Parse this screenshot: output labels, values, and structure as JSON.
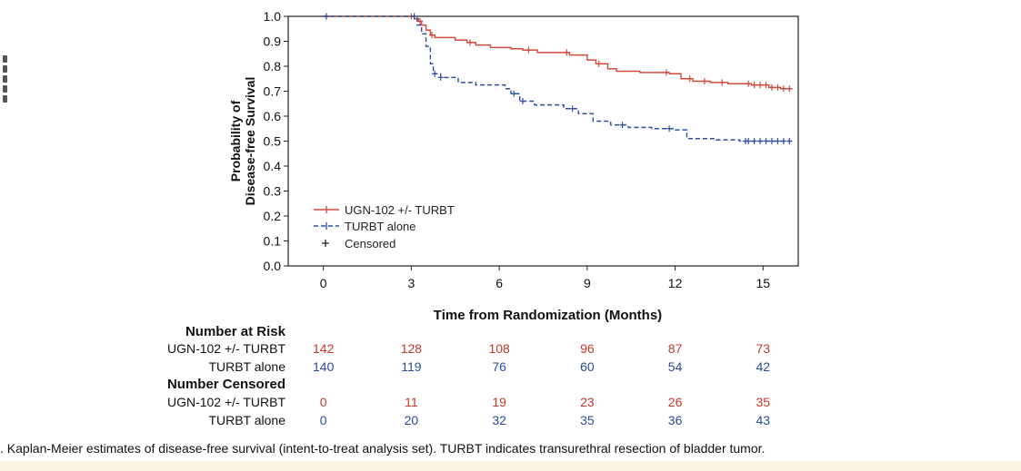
{
  "chart_data": {
    "type": "line",
    "title": "",
    "xlabel": "Time from Randomization (Months)",
    "ylabel_lines": [
      "Probability of",
      "Disease-free Survival"
    ],
    "xlim": [
      -1.2,
      16.2
    ],
    "ylim": [
      0,
      1.0
    ],
    "x_ticks": [
      0,
      3,
      6,
      9,
      12,
      15
    ],
    "y_ticks": [
      "0.0",
      "0.1",
      "0.2",
      "0.3",
      "0.4",
      "0.5",
      "0.6",
      "0.7",
      "0.8",
      "0.9",
      "1.0"
    ],
    "grid": false,
    "legend_position": "bottom-left",
    "legend": [
      "UGN-102 +/- TURBT",
      "TURBT alone",
      "Censored"
    ],
    "series": [
      {
        "name": "UGN-102 +/- TURBT",
        "color": "#d04a3c",
        "dash": "solid",
        "steps": [
          [
            0,
            1.0
          ],
          [
            3.0,
            1.0
          ],
          [
            3.1,
            0.99
          ],
          [
            3.25,
            0.98
          ],
          [
            3.35,
            0.965
          ],
          [
            3.5,
            0.945
          ],
          [
            3.65,
            0.925
          ],
          [
            3.8,
            0.915
          ],
          [
            4.5,
            0.905
          ],
          [
            4.9,
            0.895
          ],
          [
            5.2,
            0.885
          ],
          [
            5.7,
            0.875
          ],
          [
            6.4,
            0.87
          ],
          [
            6.8,
            0.865
          ],
          [
            7.3,
            0.855
          ],
          [
            8.4,
            0.845
          ],
          [
            9.0,
            0.825
          ],
          [
            9.3,
            0.81
          ],
          [
            9.7,
            0.79
          ],
          [
            10.0,
            0.78
          ],
          [
            10.8,
            0.775
          ],
          [
            11.8,
            0.77
          ],
          [
            12.2,
            0.75
          ],
          [
            12.6,
            0.74
          ],
          [
            13.2,
            0.735
          ],
          [
            13.8,
            0.73
          ],
          [
            14.6,
            0.725
          ],
          [
            15.2,
            0.715
          ],
          [
            15.6,
            0.71
          ],
          [
            16.0,
            0.71
          ]
        ],
        "censored": [
          0.1,
          3.0,
          3.3,
          3.7,
          5.0,
          7.0,
          8.3,
          9.4,
          11.7,
          12.5,
          13.0,
          13.6,
          14.5,
          14.7,
          14.9,
          15.1,
          15.3,
          15.5,
          15.7,
          15.9
        ]
      },
      {
        "name": "TURBT alone",
        "color": "#2f4fa8",
        "dash": "dashed",
        "steps": [
          [
            0,
            1.0
          ],
          [
            3.0,
            1.0
          ],
          [
            3.2,
            0.965
          ],
          [
            3.35,
            0.93
          ],
          [
            3.5,
            0.88
          ],
          [
            3.65,
            0.81
          ],
          [
            3.75,
            0.77
          ],
          [
            4.0,
            0.755
          ],
          [
            4.6,
            0.735
          ],
          [
            5.2,
            0.725
          ],
          [
            6.2,
            0.71
          ],
          [
            6.4,
            0.69
          ],
          [
            6.7,
            0.66
          ],
          [
            7.2,
            0.645
          ],
          [
            8.2,
            0.63
          ],
          [
            8.7,
            0.61
          ],
          [
            9.2,
            0.58
          ],
          [
            9.8,
            0.565
          ],
          [
            10.4,
            0.555
          ],
          [
            11.2,
            0.55
          ],
          [
            12.0,
            0.545
          ],
          [
            12.4,
            0.51
          ],
          [
            13.4,
            0.505
          ],
          [
            14.2,
            0.5
          ],
          [
            16.0,
            0.5
          ]
        ],
        "censored": [
          0.1,
          3.1,
          3.8,
          4.0,
          6.5,
          6.8,
          8.5,
          10.2,
          11.8,
          14.4,
          14.5,
          14.7,
          14.9,
          15.1,
          15.3,
          15.5,
          15.7,
          15.9
        ]
      }
    ]
  },
  "risk_table": {
    "number_at_risk_title": "Number at Risk",
    "number_censored_title": "Number  Censored",
    "times": [
      0,
      3,
      6,
      9,
      12,
      15
    ],
    "at_risk": [
      {
        "label": "UGN-102 +/- TURBT",
        "color": "#c0392b",
        "values": [
          "142",
          "128",
          "108",
          "96",
          "87",
          "73"
        ]
      },
      {
        "label": "TURBT alone",
        "color": "#2a4b9b",
        "values": [
          "140",
          "119",
          "76",
          "60",
          "54",
          "42"
        ]
      }
    ],
    "censored": [
      {
        "label": "UGN-102 +/- TURBT",
        "color": "#c0392b",
        "values": [
          "0",
          "11",
          "19",
          "23",
          "26",
          "35"
        ]
      },
      {
        "label": "TURBT alone",
        "color": "#2a4b9b",
        "values": [
          "0",
          "20",
          "32",
          "35",
          "36",
          "43"
        ]
      }
    ]
  },
  "caption": ". Kaplan-Meier estimates of disease-free survival (intent-to-treat analysis set). TURBT indicates transurethral resection of bladder tumor."
}
